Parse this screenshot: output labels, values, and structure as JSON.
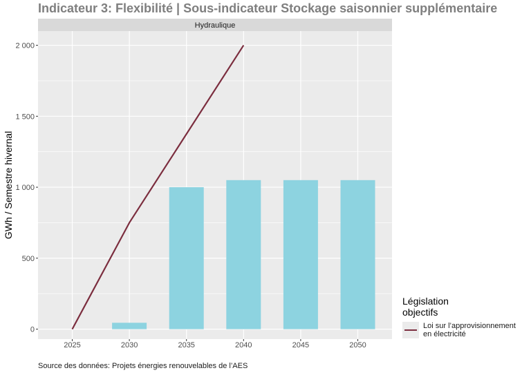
{
  "title": "Indicateur 3: Flexibilité | Sous-indicateur Stockage saisonnier supplémentaire",
  "source": "Source des données: Projets énergies renouvelables de l’AES",
  "legend": {
    "title_lines": [
      "Législation",
      "objectifs"
    ],
    "label_lines": [
      "Loi sur l’approvisionnement",
      "en électricité"
    ]
  },
  "chart_data": {
    "type": "bar",
    "facet_label": "Hydraulique",
    "ylabel": "GWh / Semestre hivernal",
    "categories": [
      "2025",
      "2030",
      "2035",
      "2040",
      "2045",
      "2050"
    ],
    "bar_values": [
      0,
      45,
      1000,
      1050,
      1050,
      1050
    ],
    "bar_color": "#8dd3e0",
    "line_series": {
      "name": "Loi sur l’approvisionnement en électricité",
      "x": [
        "2025",
        "2030",
        "2040"
      ],
      "y": [
        0,
        750,
        2000
      ],
      "color": "#7b2d3e"
    },
    "ylim": [
      -70,
      2100
    ],
    "yticks": [
      0,
      500,
      1000,
      1500,
      2000
    ],
    "ytick_labels": [
      "0",
      "500",
      "1 000",
      "1 500",
      "2 000"
    ],
    "grid": true
  }
}
